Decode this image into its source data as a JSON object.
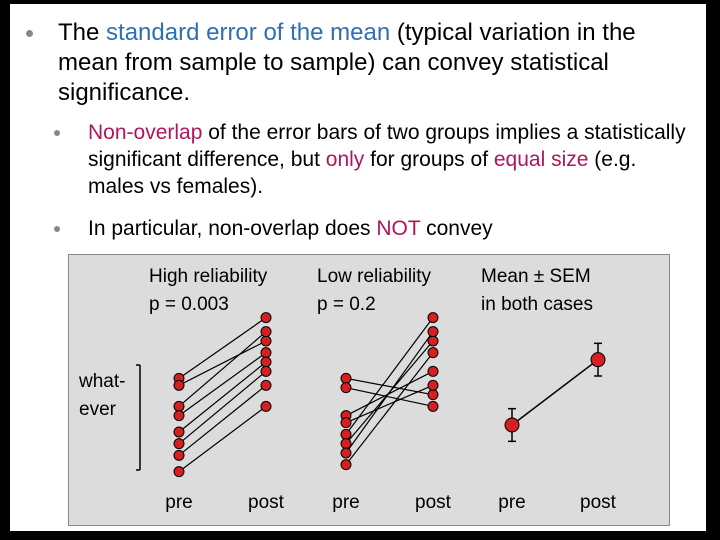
{
  "bullet_main": {
    "part1": "The ",
    "highlight": "standard error of the mean",
    "part2": " (typical variation in the mean from sample to sample) can convey statistical significance."
  },
  "sub1": {
    "highlight1": "Non-overlap",
    "part1": " of the error bars of two groups implies a statistically significant difference, but ",
    "highlight2": "only",
    "part2": " for groups of ",
    "highlight3": "equal size",
    "part3": " (e.g. males vs females)."
  },
  "sub2": {
    "part1": "In particular, non-overlap does ",
    "highlight": "NOT",
    "part2": " convey"
  },
  "figure": {
    "panel1": {
      "title": "High reliability",
      "pvalue": "p = 0.003"
    },
    "panel2": {
      "title": "Low reliability",
      "pvalue": "p = 0.2"
    },
    "panel3": {
      "title": "Mean ± SEM",
      "subtitle": "in both cases"
    },
    "ylabel": [
      "what-",
      "ever"
    ],
    "xlabels": [
      "pre",
      "post",
      "pre",
      "post",
      "pre",
      "post"
    ],
    "marker_color": "#d42020",
    "line_color": "#000000"
  },
  "chart_data": {
    "type": "line",
    "categories": [
      "pre",
      "post"
    ],
    "panels": [
      {
        "title": "High reliability",
        "subtitle": "p = 0.003",
        "pairs": [
          [
            8.0,
            10.6
          ],
          [
            7.7,
            9.6
          ],
          [
            6.8,
            10.0
          ],
          [
            6.4,
            9.1
          ],
          [
            5.7,
            8.7
          ],
          [
            5.2,
            8.3
          ],
          [
            4.7,
            7.7
          ],
          [
            4.0,
            6.8
          ]
        ]
      },
      {
        "title": "Low reliability",
        "subtitle": "p = 0.2",
        "pairs": [
          [
            8.0,
            7.3
          ],
          [
            7.6,
            6.8
          ],
          [
            6.4,
            8.3
          ],
          [
            6.1,
            7.7
          ],
          [
            5.6,
            10.6
          ],
          [
            5.2,
            9.6
          ],
          [
            4.8,
            10.0
          ],
          [
            4.3,
            9.1
          ]
        ]
      },
      {
        "title": "Mean ± SEM",
        "subtitle": "in both cases",
        "mean": [
          6.0,
          8.8
        ],
        "sem": [
          0.7,
          0.7
        ]
      }
    ],
    "ylim": [
      3,
      12
    ]
  }
}
